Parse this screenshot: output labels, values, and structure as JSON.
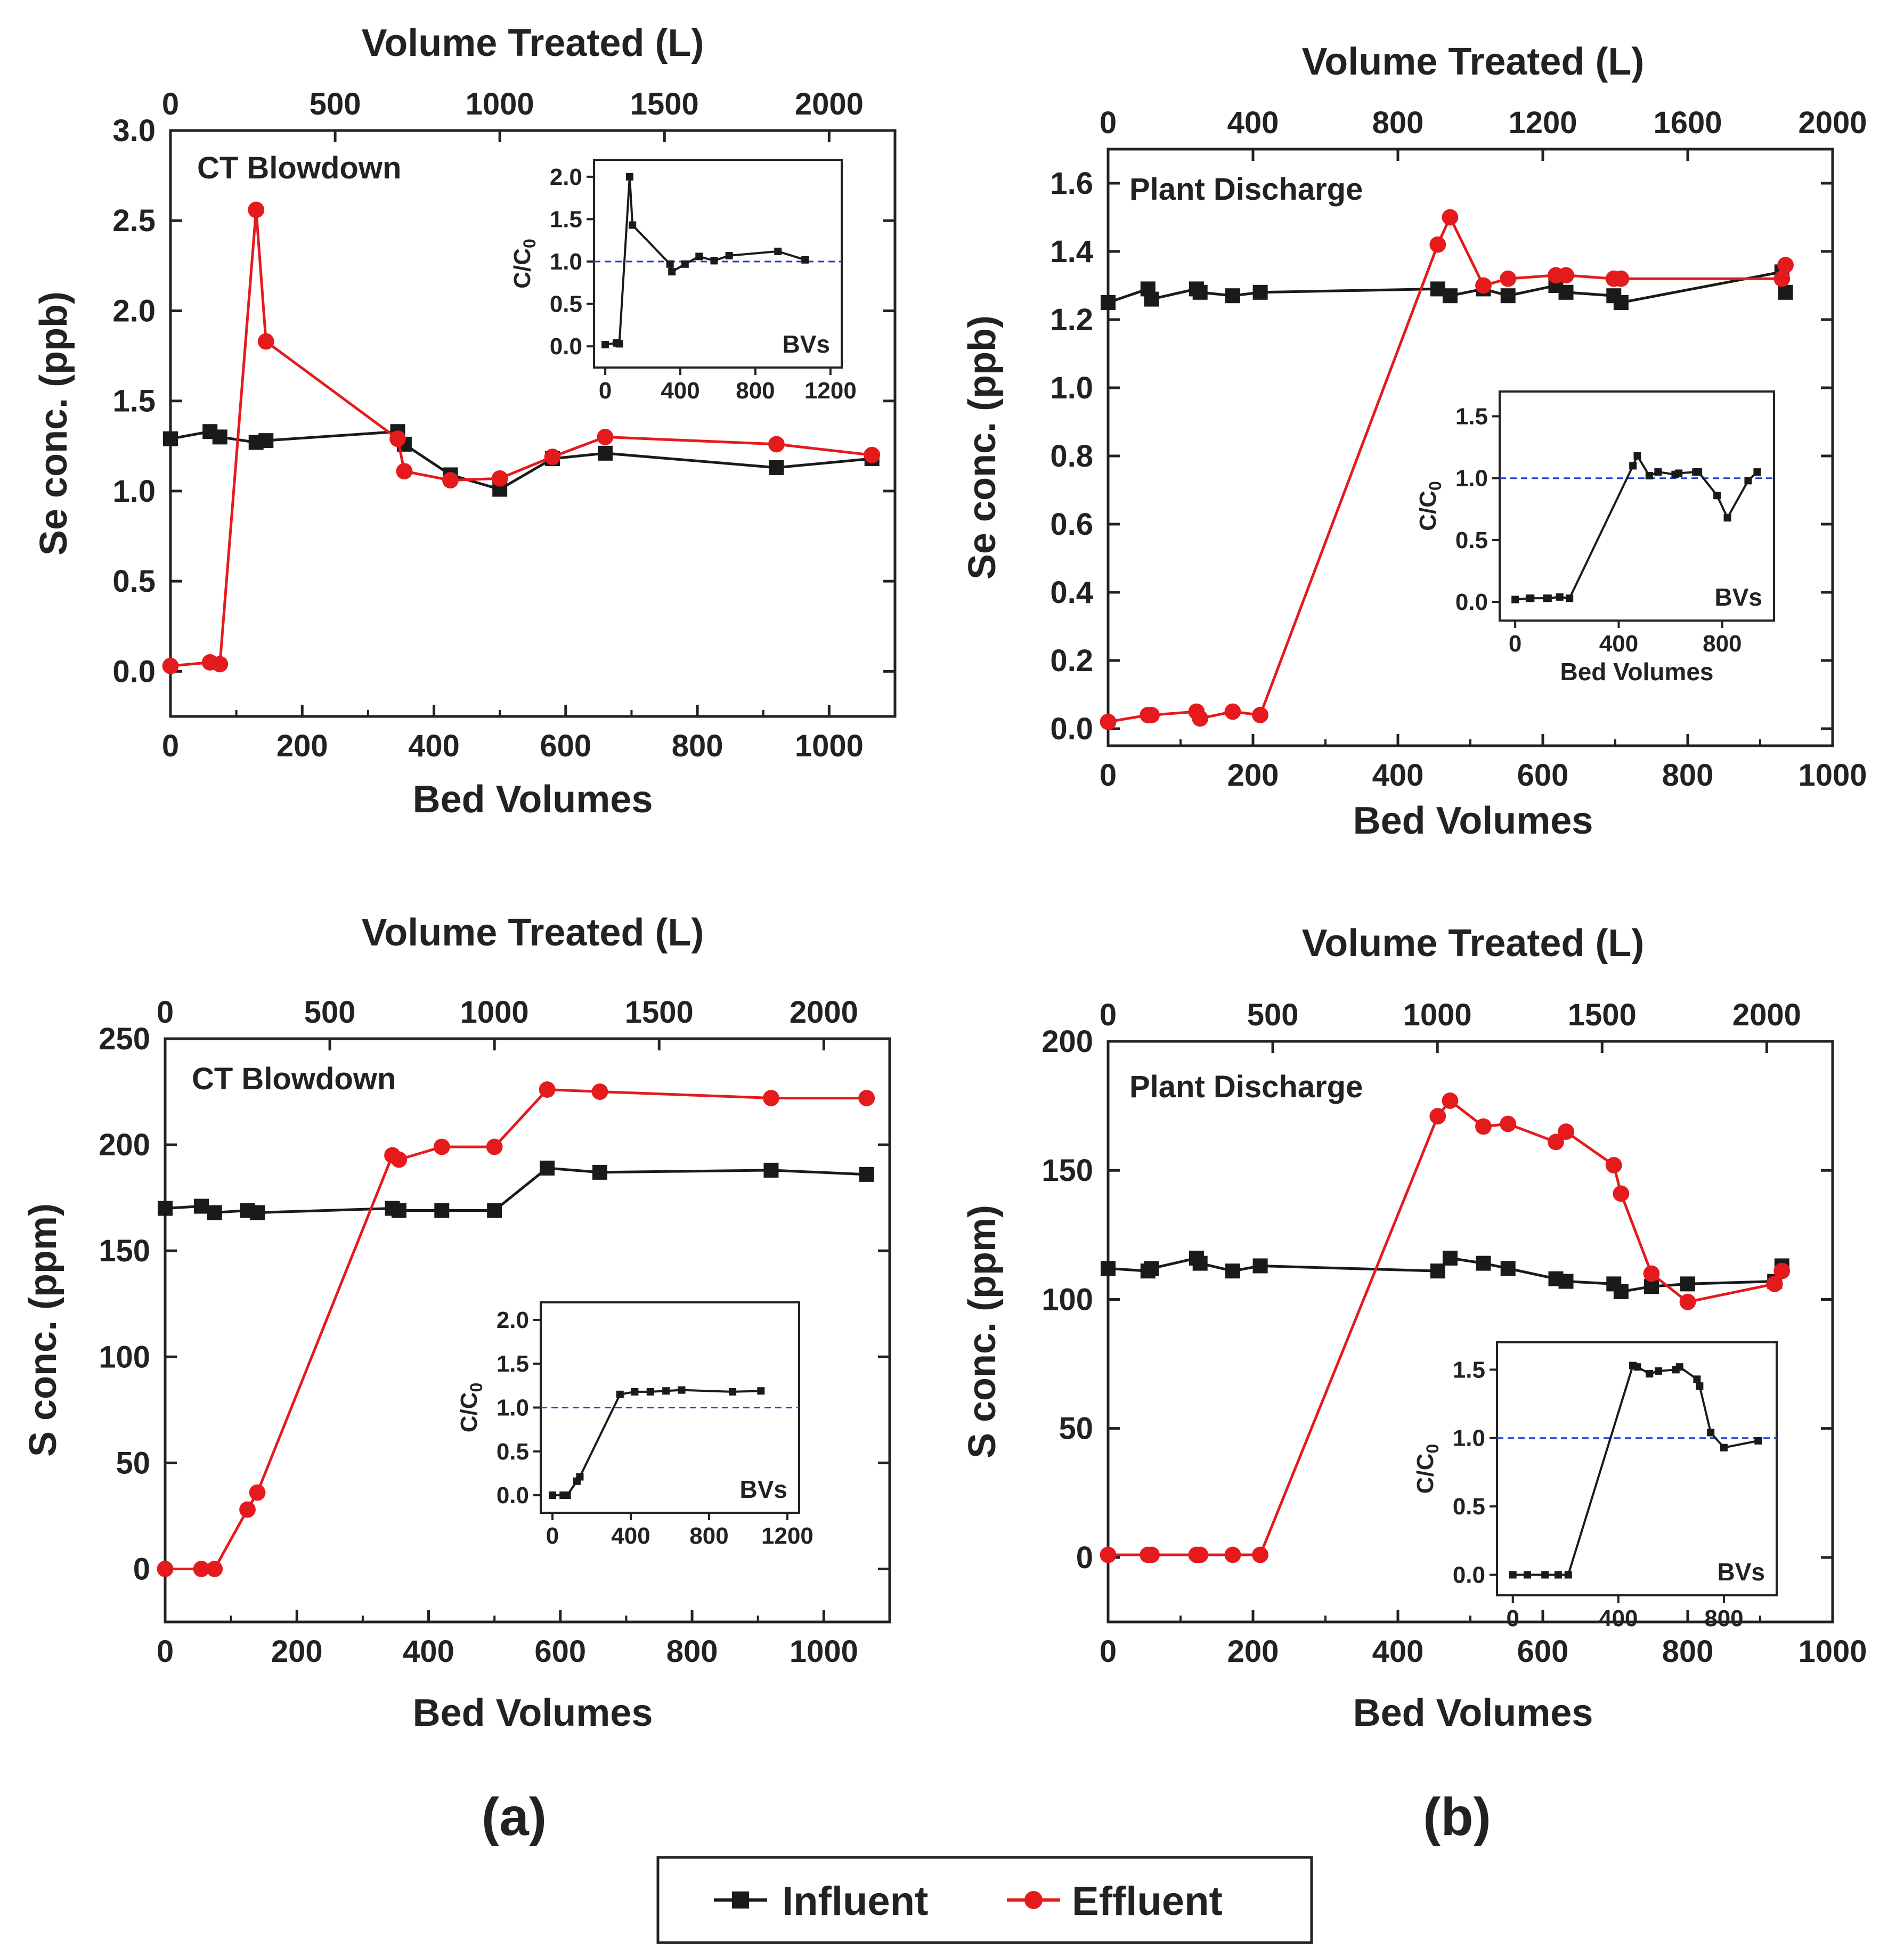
{
  "colors": {
    "influent": "#1a1a1a",
    "effluent": "#e41a1c",
    "reference_line": "#1f3fd6",
    "axis": "#222222"
  },
  "legend": {
    "influent_label": "Influent",
    "effluent_label": "Effluent"
  },
  "panel_labels": {
    "a": "(a)",
    "b": "(b)"
  },
  "chart_data": [
    {
      "id": "se_ct",
      "type": "line",
      "annotation": "CT Blowdown",
      "xlabel": "Bed Volumes",
      "ylabel": "Se conc. (ppb)",
      "top_label": "Volume Treated (L)",
      "xlim": [
        0,
        1100
      ],
      "xticks": [
        0,
        200,
        400,
        600,
        800,
        1000
      ],
      "ylim": [
        -0.25,
        3.0
      ],
      "yticks": [
        0.0,
        0.5,
        1.0,
        1.5,
        2.0,
        2.5,
        3.0
      ],
      "ytick_labels": [
        "0.0",
        "0.5",
        "1.0",
        "1.5",
        "2.0",
        "2.5",
        "3.0"
      ],
      "top_ticks": [
        0,
        500,
        1000,
        1500,
        2000
      ],
      "top_max": 2200,
      "series": [
        {
          "name": "Influent",
          "marker": "square",
          "x": [
            0,
            60,
            75,
            130,
            145,
            345,
            355,
            425,
            500,
            580,
            660,
            920,
            1065
          ],
          "y": [
            1.29,
            1.33,
            1.3,
            1.27,
            1.28,
            1.33,
            1.26,
            1.09,
            1.01,
            1.18,
            1.21,
            1.13,
            1.18
          ]
        },
        {
          "name": "Effluent",
          "marker": "circle",
          "x": [
            0,
            60,
            75,
            130,
            145,
            345,
            355,
            425,
            500,
            580,
            660,
            920,
            1065
          ],
          "y": [
            0.03,
            0.05,
            0.04,
            2.56,
            1.83,
            1.29,
            1.11,
            1.06,
            1.07,
            1.19,
            1.3,
            1.26,
            1.2
          ]
        }
      ],
      "inset": {
        "ylabel_main": "C/C",
        "ylabel_sub": "0",
        "annotation": "BVs",
        "xlabel": "",
        "xlim": [
          -60,
          1260
        ],
        "xticks": [
          0,
          400,
          800,
          1200
        ],
        "ylim": [
          -0.25,
          2.2
        ],
        "yticks": [
          0.0,
          0.5,
          1.0,
          1.5,
          2.0
        ],
        "ytick_labels": [
          "0.0",
          "0.5",
          "1.0",
          "1.5",
          "2.0"
        ],
        "reference_y": 1.0,
        "x": [
          0,
          60,
          75,
          130,
          145,
          345,
          355,
          425,
          500,
          580,
          660,
          920,
          1065
        ],
        "y": [
          0.02,
          0.04,
          0.03,
          2.0,
          1.43,
          0.97,
          0.88,
          0.97,
          1.06,
          1.01,
          1.07,
          1.12,
          1.02
        ]
      }
    },
    {
      "id": "se_pd",
      "type": "line",
      "annotation": "Plant Discharge",
      "xlabel": "Bed Volumes",
      "ylabel": "Se conc. (ppb)",
      "top_label": "Volume Treated (L)",
      "xlim": [
        0,
        1000
      ],
      "xticks": [
        0,
        200,
        400,
        600,
        800,
        1000
      ],
      "ylim": [
        -0.05,
        1.7
      ],
      "yticks": [
        0.0,
        0.2,
        0.4,
        0.6,
        0.8,
        1.0,
        1.2,
        1.4,
        1.6
      ],
      "ytick_labels": [
        "0.0",
        "0.2",
        "0.4",
        "0.6",
        "0.8",
        "1.0",
        "1.2",
        "1.4",
        "1.6"
      ],
      "top_ticks": [
        0,
        400,
        800,
        1200,
        1600,
        2000
      ],
      "top_max": 2000,
      "series": [
        {
          "name": "Influent",
          "marker": "square",
          "x": [
            0,
            55,
            60,
            122,
            127,
            172,
            210,
            455,
            472,
            518,
            552,
            618,
            632,
            698,
            708,
            930,
            935
          ],
          "y": [
            1.25,
            1.29,
            1.26,
            1.29,
            1.28,
            1.27,
            1.28,
            1.29,
            1.27,
            1.29,
            1.27,
            1.3,
            1.28,
            1.27,
            1.25,
            1.34,
            1.28
          ]
        },
        {
          "name": "Effluent",
          "marker": "circle",
          "x": [
            0,
            55,
            60,
            122,
            127,
            172,
            210,
            455,
            472,
            518,
            552,
            618,
            632,
            698,
            708,
            930,
            935
          ],
          "y": [
            0.02,
            0.04,
            0.04,
            0.05,
            0.03,
            0.05,
            0.04,
            1.42,
            1.5,
            1.3,
            1.32,
            1.33,
            1.33,
            1.32,
            1.32,
            1.32,
            1.36
          ]
        }
      ],
      "inset": {
        "ylabel_main": "C/C",
        "ylabel_sub": "0",
        "annotation": "BVs",
        "xlabel": "Bed Volumes",
        "xlim": [
          -60,
          1000
        ],
        "xticks": [
          0,
          400,
          800
        ],
        "ylim": [
          -0.15,
          1.7
        ],
        "yticks": [
          0.0,
          0.5,
          1.0,
          1.5
        ],
        "ytick_labels": [
          "0.0",
          "0.5",
          "1.0",
          "1.5"
        ],
        "reference_y": 1.0,
        "x": [
          0,
          55,
          60,
          122,
          127,
          172,
          210,
          455,
          472,
          518,
          552,
          618,
          632,
          698,
          708,
          780,
          820,
          900,
          935
        ],
        "y": [
          0.02,
          0.03,
          0.03,
          0.03,
          0.03,
          0.04,
          0.03,
          1.1,
          1.18,
          1.02,
          1.05,
          1.03,
          1.04,
          1.05,
          1.05,
          0.86,
          0.68,
          0.98,
          1.05
        ]
      }
    },
    {
      "id": "s_ct",
      "type": "line",
      "annotation": "CT Blowdown",
      "xlabel": "Bed Volumes",
      "ylabel": "S conc. (ppm)",
      "top_label": "Volume Treated (L)",
      "xlim": [
        0,
        1100
      ],
      "xticks": [
        0,
        200,
        400,
        600,
        800,
        1000
      ],
      "ylim": [
        -25,
        250
      ],
      "yticks": [
        0,
        50,
        100,
        150,
        200,
        250
      ],
      "ytick_labels": [
        "0",
        "50",
        "100",
        "150",
        "200",
        "250"
      ],
      "top_ticks": [
        0,
        500,
        1000,
        1500,
        2000
      ],
      "top_max": 2200,
      "series": [
        {
          "name": "Influent",
          "marker": "square",
          "x": [
            0,
            55,
            75,
            125,
            140,
            345,
            355,
            420,
            500,
            580,
            660,
            920,
            1065
          ],
          "y": [
            170,
            171,
            168,
            169,
            168,
            170,
            169,
            169,
            169,
            189,
            187,
            188,
            186
          ]
        },
        {
          "name": "Effluent",
          "marker": "circle",
          "x": [
            0,
            55,
            75,
            125,
            140,
            345,
            355,
            420,
            500,
            580,
            660,
            920,
            1065
          ],
          "y": [
            0,
            0,
            0,
            28,
            36,
            195,
            193,
            199,
            199,
            226,
            225,
            222,
            222
          ]
        }
      ],
      "inset": {
        "ylabel_main": "C/C",
        "ylabel_sub": "0",
        "annotation": "BVs",
        "xlabel": "",
        "xlim": [
          -60,
          1260
        ],
        "xticks": [
          0,
          400,
          800,
          1200
        ],
        "ylim": [
          -0.2,
          2.2
        ],
        "yticks": [
          0.0,
          0.5,
          1.0,
          1.5,
          2.0
        ],
        "ytick_labels": [
          "0.0",
          "0.5",
          "1.0",
          "1.5",
          "2.0"
        ],
        "reference_y": 1.0,
        "x": [
          0,
          55,
          75,
          125,
          140,
          345,
          420,
          500,
          580,
          660,
          920,
          1065
        ],
        "y": [
          0.0,
          0.0,
          0.0,
          0.16,
          0.21,
          1.15,
          1.18,
          1.18,
          1.19,
          1.2,
          1.18,
          1.19
        ]
      }
    },
    {
      "id": "s_pd",
      "type": "line",
      "annotation": "Plant Discharge",
      "xlabel": "Bed Volumes",
      "ylabel": "S conc. (ppm)",
      "top_label": "Volume Treated (L)",
      "xlim": [
        0,
        1000
      ],
      "xticks": [
        0,
        200,
        400,
        600,
        800,
        1000
      ],
      "ylim": [
        -25,
        200
      ],
      "yticks": [
        0,
        50,
        100,
        150,
        200
      ],
      "ytick_labels": [
        "0",
        "50",
        "100",
        "150",
        "200"
      ],
      "top_ticks": [
        0,
        500,
        1000,
        1500,
        2000
      ],
      "top_max": 2200,
      "series": [
        {
          "name": "Influent",
          "marker": "square",
          "x": [
            0,
            55,
            60,
            122,
            127,
            172,
            210,
            455,
            472,
            518,
            552,
            618,
            632,
            698,
            708,
            750,
            800,
            920,
            930
          ],
          "y": [
            112,
            111,
            112,
            116,
            114,
            111,
            113,
            111,
            116,
            114,
            112,
            108,
            107,
            106,
            103,
            105,
            106,
            107,
            113
          ]
        },
        {
          "name": "Effluent",
          "marker": "circle",
          "x": [
            0,
            55,
            60,
            122,
            127,
            172,
            210,
            455,
            472,
            518,
            552,
            618,
            632,
            698,
            708,
            750,
            800,
            920,
            930
          ],
          "y": [
            1,
            1,
            1,
            1,
            1,
            1,
            1,
            171,
            177,
            167,
            168,
            161,
            165,
            152,
            141,
            110,
            99,
            106,
            111
          ]
        }
      ],
      "inset": {
        "ylabel_main": "C/C",
        "ylabel_sub": "0",
        "annotation": "BVs",
        "xlabel": "",
        "xlim": [
          -60,
          1000
        ],
        "xticks": [
          0,
          400,
          800
        ],
        "ylim": [
          -0.15,
          1.7
        ],
        "yticks": [
          0.0,
          0.5,
          1.0,
          1.5
        ],
        "ytick_labels": [
          "0.0",
          "0.5",
          "1.0",
          "1.5"
        ],
        "reference_y": 1.0,
        "x": [
          0,
          55,
          122,
          172,
          210,
          455,
          472,
          518,
          552,
          618,
          632,
          698,
          708,
          750,
          800,
          930
        ],
        "y": [
          0.0,
          0.0,
          0.0,
          0.0,
          0.0,
          1.53,
          1.52,
          1.47,
          1.49,
          1.5,
          1.52,
          1.43,
          1.38,
          1.04,
          0.93,
          0.98
        ]
      }
    }
  ]
}
